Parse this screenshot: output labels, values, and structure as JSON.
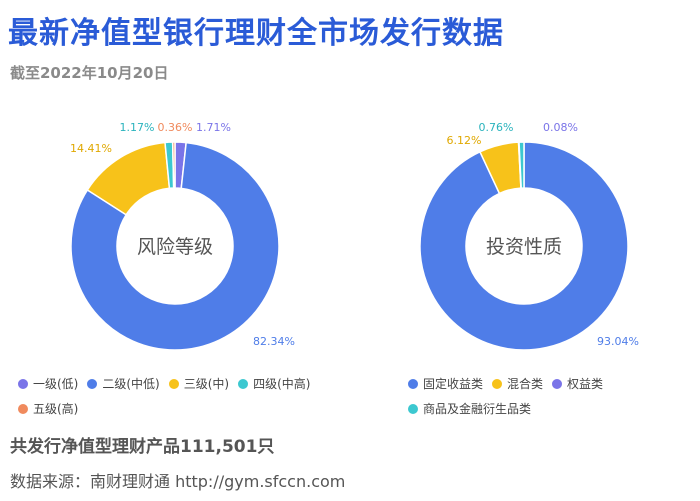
{
  "page": {
    "title": "最新净值型银行理财全市场发行数据",
    "subtitle": "截至2022年10月20日",
    "total": "共发行净值型理财产品111,501只",
    "source": "数据来源：南财理财通 http://gym.sfccn.com"
  },
  "chart_data": [
    {
      "type": "pie",
      "center_label": "风险等级",
      "slices": [
        {
          "name": "一级(低)",
          "value": 1.71,
          "label": "1.71%",
          "color": "#7a74e8"
        },
        {
          "name": "二级(中低)",
          "value": 82.34,
          "label": "82.34%",
          "color": "#4f7de8"
        },
        {
          "name": "三级(中)",
          "value": 14.41,
          "label": "14.41%",
          "color": "#f7c21a"
        },
        {
          "name": "四级(中高)",
          "value": 1.17,
          "label": "1.17%",
          "color": "#3cc8d0"
        },
        {
          "name": "五级(高)",
          "value": 0.36,
          "label": "0.36%",
          "color": "#f08a5d"
        }
      ]
    },
    {
      "type": "pie",
      "center_label": "投资性质",
      "slices": [
        {
          "name": "固定收益类",
          "value": 93.04,
          "label": "93.04%",
          "color": "#4f7de8"
        },
        {
          "name": "混合类",
          "value": 6.12,
          "label": "6.12%",
          "color": "#f7c21a"
        },
        {
          "name": "权益类",
          "value": 0.08,
          "label": "0.08%",
          "color": "#7a74e8"
        },
        {
          "name": "商品及金融衍生品类",
          "value": 0.76,
          "label": "0.76%",
          "color": "#3cc8d0"
        }
      ]
    }
  ]
}
